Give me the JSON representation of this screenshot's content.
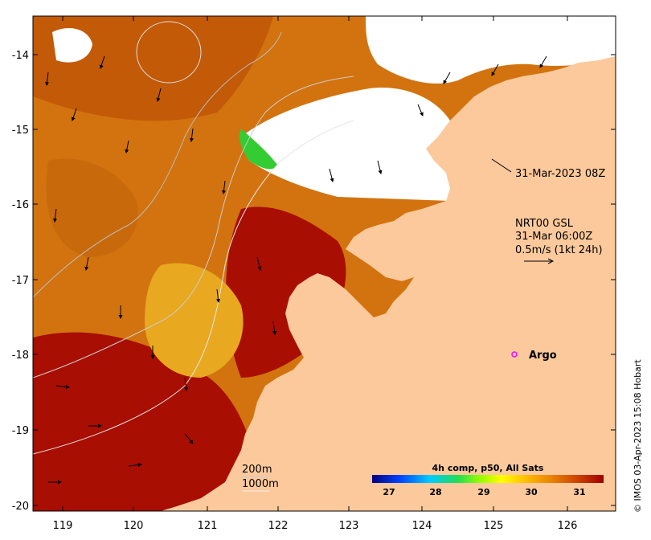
{
  "map": {
    "y_ticks": [
      "-14",
      "-15",
      "-16",
      "-17",
      "-18",
      "-19",
      "-20"
    ],
    "x_ticks": [
      "119",
      "120",
      "121",
      "122",
      "123",
      "124",
      "125",
      "126"
    ]
  },
  "annotations": {
    "timestamp": "31-Mar-2023 08Z",
    "current_model": "NRT00 GSL",
    "current_time": "31-Mar 06:00Z",
    "scale_arrow": "0.5m/s (1kt 24h)",
    "argo": "Argo"
  },
  "contours": {
    "label_200": "200m",
    "label_1000": "1000m"
  },
  "colorbar": {
    "title": "4h comp, p50, All Sats",
    "ticks": [
      "27",
      "28",
      "29",
      "30",
      "31"
    ],
    "colors": [
      "#00007f",
      "#0044ff",
      "#00ccff",
      "#22dd55",
      "#99ff00",
      "#ffff00",
      "#ffc000",
      "#e88000",
      "#cc4000",
      "#a00000"
    ]
  },
  "credit": "© IMOS 03-Apr-2023 15:08 Hobart",
  "colors": {
    "land": "#fbc99b",
    "sea_hot": "#a80e02",
    "sea_warm": "#d87510",
    "sea_mid": "#e8a020",
    "cloud": "#ffffff"
  }
}
